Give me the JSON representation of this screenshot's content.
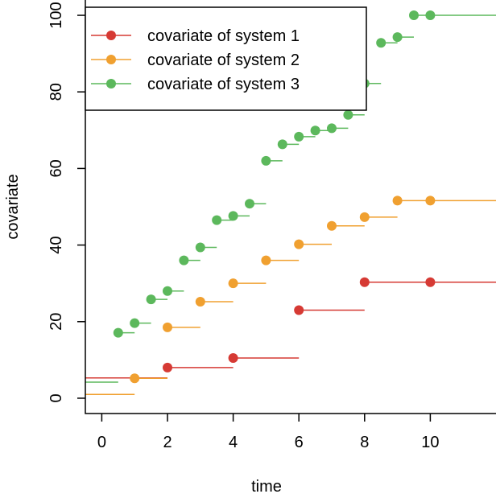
{
  "chart_data": {
    "type": "step",
    "xlabel": "time",
    "ylabel": "covariate",
    "xlim": [
      -0.5,
      12
    ],
    "ylim": [
      -4,
      104
    ],
    "x_ticks": [
      0,
      2,
      4,
      6,
      8,
      10
    ],
    "y_ticks": [
      0,
      20,
      40,
      60,
      80,
      100
    ],
    "legend_position": "top-left",
    "series": [
      {
        "name": "covariate of system 1",
        "color": "#d63a34",
        "initial": 5.3,
        "steps": [
          {
            "x": 2,
            "y": 8.0
          },
          {
            "x": 4,
            "y": 10.5
          },
          {
            "x": 6,
            "y": 23.0
          },
          {
            "x": 8,
            "y": 30.3
          },
          {
            "x": 10,
            "y": 30.3
          }
        ]
      },
      {
        "name": "covariate of system 2",
        "color": "#f0a030",
        "initial": 1.0,
        "steps": [
          {
            "x": 1,
            "y": 5.2
          },
          {
            "x": 2,
            "y": 18.5
          },
          {
            "x": 3,
            "y": 25.2
          },
          {
            "x": 4,
            "y": 30.0
          },
          {
            "x": 5,
            "y": 36.0
          },
          {
            "x": 6,
            "y": 40.2
          },
          {
            "x": 7,
            "y": 45.0
          },
          {
            "x": 8,
            "y": 47.3
          },
          {
            "x": 9,
            "y": 51.6
          },
          {
            "x": 10,
            "y": 51.6
          }
        ]
      },
      {
        "name": "covariate of system 3",
        "color": "#5cb85c",
        "initial": 4.2,
        "steps": [
          {
            "x": 0.5,
            "y": 17.1
          },
          {
            "x": 1,
            "y": 19.6
          },
          {
            "x": 1.5,
            "y": 25.8
          },
          {
            "x": 2,
            "y": 28.0
          },
          {
            "x": 2.5,
            "y": 36.0
          },
          {
            "x": 3,
            "y": 39.4
          },
          {
            "x": 3.5,
            "y": 46.5
          },
          {
            "x": 4,
            "y": 47.6
          },
          {
            "x": 4.5,
            "y": 50.8
          },
          {
            "x": 5,
            "y": 62.0
          },
          {
            "x": 5.5,
            "y": 66.3
          },
          {
            "x": 6,
            "y": 68.3
          },
          {
            "x": 6.5,
            "y": 69.9
          },
          {
            "x": 7,
            "y": 70.5
          },
          {
            "x": 7.5,
            "y": 74.0
          },
          {
            "x": 8,
            "y": 82.2
          },
          {
            "x": 8.5,
            "y": 92.8
          },
          {
            "x": 9,
            "y": 94.3
          },
          {
            "x": 9.5,
            "y": 100.0
          },
          {
            "x": 10,
            "y": 100.0
          }
        ]
      }
    ]
  }
}
